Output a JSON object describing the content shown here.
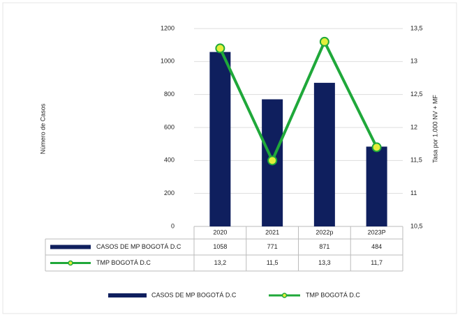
{
  "chart_data": {
    "type": "bar-line",
    "y_label": "Número de Casos",
    "y2_label": "Tasa por 1.000 NV + MF",
    "categories": [
      "2020",
      "2021",
      "2022p",
      "2023P"
    ],
    "series": [
      {
        "name": "CASOS DE MP BOGOTÁ D.C",
        "type": "bar",
        "color": "#0f1f5e",
        "values": [
          1058,
          771,
          871,
          484
        ]
      },
      {
        "name": "TMP BOGOTÁ D.C",
        "type": "line",
        "axis": "y2",
        "color": "#1fa83a",
        "marker_color": "#e3ef3a",
        "values": [
          13.2,
          11.5,
          13.3,
          11.7
        ],
        "value_labels": [
          "13,2",
          "11,5",
          "13,3",
          "11,7"
        ]
      }
    ],
    "ylim": [
      0,
      1200
    ],
    "yticks": [
      0,
      200,
      400,
      600,
      800,
      1000,
      1200
    ],
    "y2lim": [
      10.5,
      13.5
    ],
    "y2ticks": [
      {
        "value": 10.5,
        "label": "10,5"
      },
      11,
      {
        "value": 11.5,
        "label": "11,5"
      },
      12,
      {
        "value": 12.5,
        "label": "12,5"
      },
      13,
      {
        "value": 13.5,
        "label": "13,5"
      }
    ],
    "grid": true,
    "legend": "bottom"
  }
}
